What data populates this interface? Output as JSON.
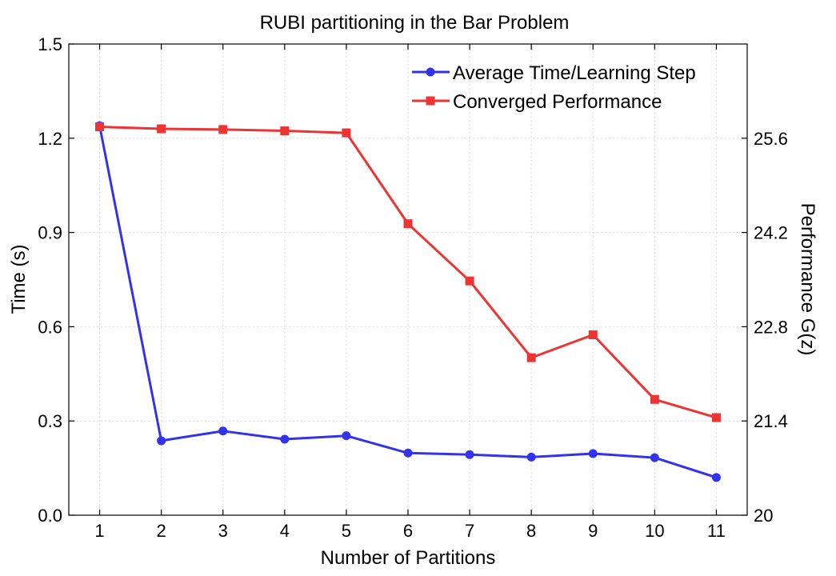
{
  "chart_data": {
    "type": "line",
    "title": "RUBI partitioning in the Bar Problem",
    "xlabel": "Number of Partitions",
    "ylabel": "Time (s)",
    "y2label": "Performance G(z)",
    "x": [
      1,
      2,
      3,
      4,
      5,
      6,
      7,
      8,
      9,
      10,
      11
    ],
    "xlim": [
      0.5,
      11.5
    ],
    "ylim": [
      0,
      1.5
    ],
    "y2lim": [
      20,
      27
    ],
    "yticks": [
      0.0,
      0.3,
      0.6,
      0.9,
      1.2,
      1.5
    ],
    "ytick_labels": [
      "0.0",
      "0.3",
      "0.6",
      "0.9",
      "1.2",
      "1.5"
    ],
    "y2ticks": [
      20,
      21.4,
      22.8,
      24.2,
      25.6
    ],
    "y2tick_labels": [
      "20",
      "21.4",
      "22.8",
      "24.2",
      "25.6"
    ],
    "grid": true,
    "legend_position": "top-right",
    "series": [
      {
        "name": "Average Time/Learning Step",
        "axis": "left",
        "color": "#3333ee",
        "marker": "circle",
        "values": [
          1.24,
          0.237,
          0.268,
          0.242,
          0.253,
          0.198,
          0.193,
          0.185,
          0.196,
          0.183,
          0.12
        ]
      },
      {
        "name": "Converged Performance",
        "axis": "right",
        "color": "#ee3333",
        "marker": "square",
        "values": [
          25.77,
          25.74,
          25.73,
          25.71,
          25.68,
          24.33,
          23.48,
          22.34,
          22.68,
          21.72,
          21.45
        ]
      }
    ]
  }
}
